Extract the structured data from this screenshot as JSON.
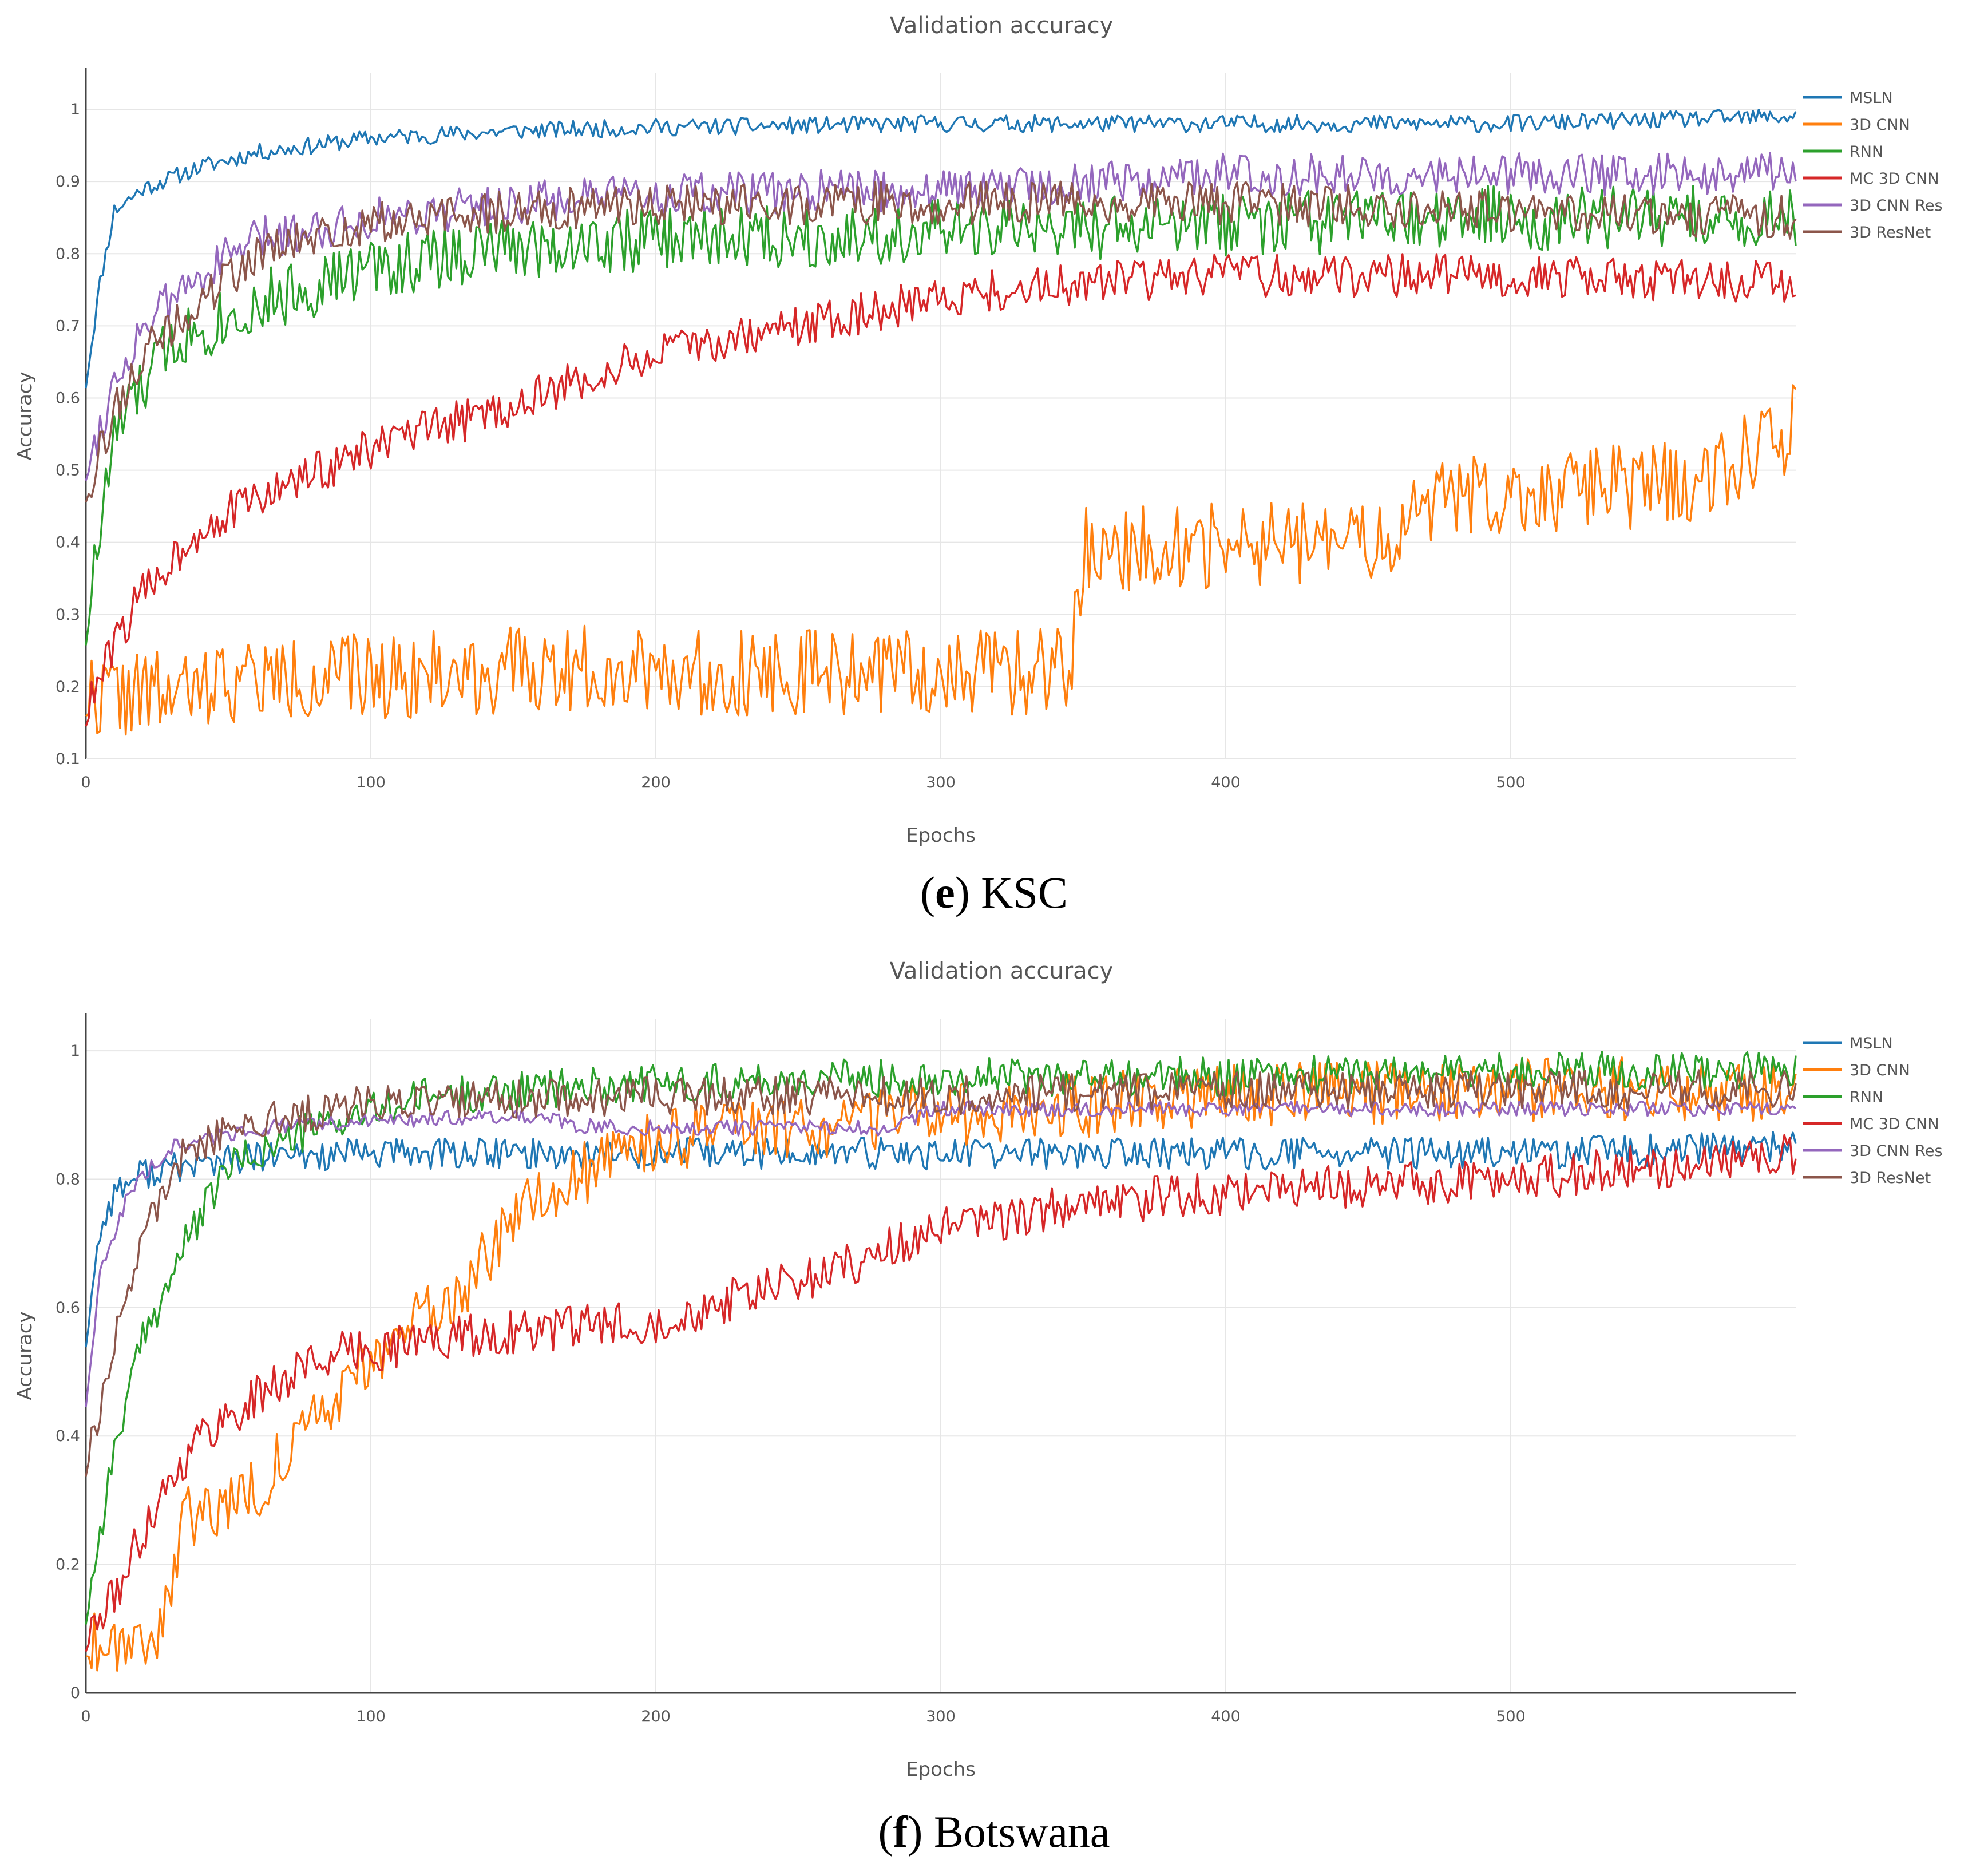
{
  "chart_data": [
    {
      "id": "e",
      "type": "line",
      "title": "Validation accuracy",
      "xlabel": "Epochs",
      "ylabel": "Accuracy",
      "xlim": [
        0,
        600
      ],
      "ylim": [
        0.1,
        1.05
      ],
      "xticks": [
        0,
        100,
        200,
        300,
        400,
        500
      ],
      "yticks": [
        0.1,
        0.2,
        0.3,
        0.4,
        0.5,
        0.6,
        0.7,
        0.8,
        0.9,
        1
      ],
      "legend_position": "right",
      "caption_letter": "e",
      "caption_text": ") KSC",
      "series": [
        {
          "name": "MSLN",
          "color": "#1f77b4",
          "points": [
            [
              0,
              0.62
            ],
            [
              5,
              0.76
            ],
            [
              10,
              0.86
            ],
            [
              20,
              0.89
            ],
            [
              40,
              0.92
            ],
            [
              60,
              0.94
            ],
            [
              80,
              0.95
            ],
            [
              100,
              0.96
            ],
            [
              150,
              0.97
            ],
            [
              200,
              0.975
            ],
            [
              300,
              0.98
            ],
            [
              400,
              0.98
            ],
            [
              500,
              0.98
            ],
            [
              600,
              0.99
            ]
          ],
          "noise": 0.012,
          "seed": 11
        },
        {
          "name": "3D CNN",
          "color": "#ff7f0e",
          "points": [
            [
              0,
              0.19
            ],
            [
              40,
              0.19
            ],
            [
              45,
              0.21
            ],
            [
              70,
              0.21
            ],
            [
              200,
              0.23
            ],
            [
              215,
              0.22
            ],
            [
              345,
              0.22
            ],
            [
              350,
              0.39
            ],
            [
              460,
              0.4
            ],
            [
              470,
              0.46
            ],
            [
              560,
              0.48
            ],
            [
              600,
              0.56
            ]
          ],
          "noise": 0.06,
          "seed": 22
        },
        {
          "name": "RNN",
          "color": "#2ca02c",
          "points": [
            [
              0,
              0.28
            ],
            [
              10,
              0.55
            ],
            [
              30,
              0.68
            ],
            [
              60,
              0.73
            ],
            [
              100,
              0.78
            ],
            [
              150,
              0.81
            ],
            [
              200,
              0.82
            ],
            [
              300,
              0.83
            ],
            [
              400,
              0.84
            ],
            [
              500,
              0.85
            ],
            [
              600,
              0.85
            ]
          ],
          "noise": 0.045,
          "seed": 33
        },
        {
          "name": "MC 3D CNN",
          "color": "#d62728",
          "points": [
            [
              0,
              0.16
            ],
            [
              10,
              0.26
            ],
            [
              20,
              0.33
            ],
            [
              40,
              0.42
            ],
            [
              60,
              0.46
            ],
            [
              100,
              0.53
            ],
            [
              150,
              0.59
            ],
            [
              200,
              0.66
            ],
            [
              250,
              0.7
            ],
            [
              300,
              0.74
            ],
            [
              350,
              0.76
            ],
            [
              400,
              0.77
            ],
            [
              500,
              0.77
            ],
            [
              600,
              0.76
            ]
          ],
          "noise": 0.03,
          "seed": 44
        },
        {
          "name": "3D CNN Res",
          "color": "#9467bd",
          "points": [
            [
              0,
              0.5
            ],
            [
              10,
              0.62
            ],
            [
              20,
              0.7
            ],
            [
              40,
              0.77
            ],
            [
              60,
              0.82
            ],
            [
              100,
              0.85
            ],
            [
              150,
              0.87
            ],
            [
              200,
              0.88
            ],
            [
              300,
              0.89
            ],
            [
              400,
              0.91
            ],
            [
              500,
              0.91
            ],
            [
              600,
              0.91
            ]
          ],
          "noise": 0.03,
          "seed": 55
        },
        {
          "name": "3D ResNet",
          "color": "#8c564b",
          "points": [
            [
              0,
              0.47
            ],
            [
              10,
              0.58
            ],
            [
              20,
              0.66
            ],
            [
              40,
              0.73
            ],
            [
              60,
              0.8
            ],
            [
              100,
              0.84
            ],
            [
              150,
              0.86
            ],
            [
              200,
              0.87
            ],
            [
              300,
              0.87
            ],
            [
              400,
              0.87
            ],
            [
              500,
              0.86
            ],
            [
              600,
              0.85
            ]
          ],
          "noise": 0.03,
          "seed": 66
        }
      ]
    },
    {
      "id": "f",
      "type": "line",
      "title": "Validation accuracy",
      "xlabel": "Epochs",
      "ylabel": "Accuracy",
      "xlim": [
        0,
        600
      ],
      "ylim": [
        0,
        1.05
      ],
      "xticks": [
        0,
        100,
        200,
        300,
        400,
        500
      ],
      "yticks": [
        0,
        0.2,
        0.4,
        0.6,
        0.8,
        1
      ],
      "legend_position": "right",
      "caption_letter": "f",
      "caption_text": ") Botswana",
      "series": [
        {
          "name": "MSLN",
          "color": "#1f77b4",
          "points": [
            [
              0,
              0.55
            ],
            [
              5,
              0.72
            ],
            [
              10,
              0.78
            ],
            [
              20,
              0.81
            ],
            [
              50,
              0.83
            ],
            [
              100,
              0.84
            ],
            [
              200,
              0.84
            ],
            [
              300,
              0.84
            ],
            [
              400,
              0.84
            ],
            [
              500,
              0.84
            ],
            [
              600,
              0.85
            ]
          ],
          "noise": 0.025,
          "seed": 77
        },
        {
          "name": "3D CNN",
          "color": "#ff7f0e",
          "points": [
            [
              0,
              0.08
            ],
            [
              25,
              0.09
            ],
            [
              35,
              0.27
            ],
            [
              60,
              0.32
            ],
            [
              80,
              0.42
            ],
            [
              100,
              0.52
            ],
            [
              130,
              0.62
            ],
            [
              160,
              0.78
            ],
            [
              200,
              0.86
            ],
            [
              250,
              0.88
            ],
            [
              300,
              0.9
            ],
            [
              400,
              0.93
            ],
            [
              500,
              0.94
            ],
            [
              600,
              0.94
            ]
          ],
          "noise": 0.05,
          "seed": 88
        },
        {
          "name": "RNN",
          "color": "#2ca02c",
          "points": [
            [
              0,
              0.12
            ],
            [
              10,
              0.38
            ],
            [
              20,
              0.55
            ],
            [
              35,
              0.7
            ],
            [
              50,
              0.82
            ],
            [
              80,
              0.88
            ],
            [
              120,
              0.93
            ],
            [
              200,
              0.95
            ],
            [
              300,
              0.96
            ],
            [
              400,
              0.96
            ],
            [
              500,
              0.97
            ],
            [
              600,
              0.97
            ]
          ],
          "noise": 0.03,
          "seed": 99
        },
        {
          "name": "MC 3D CNN",
          "color": "#d62728",
          "points": [
            [
              0,
              0.08
            ],
            [
              10,
              0.15
            ],
            [
              25,
              0.3
            ],
            [
              40,
              0.4
            ],
            [
              60,
              0.46
            ],
            [
              80,
              0.52
            ],
            [
              120,
              0.55
            ],
            [
              200,
              0.58
            ],
            [
              250,
              0.64
            ],
            [
              300,
              0.72
            ],
            [
              350,
              0.76
            ],
            [
              400,
              0.78
            ],
            [
              500,
              0.8
            ],
            [
              600,
              0.84
            ]
          ],
          "noise": 0.035,
          "seed": 111
        },
        {
          "name": "3D CNN Res",
          "color": "#9467bd",
          "points": [
            [
              0,
              0.45
            ],
            [
              5,
              0.65
            ],
            [
              15,
              0.78
            ],
            [
              30,
              0.85
            ],
            [
              60,
              0.88
            ],
            [
              100,
              0.89
            ],
            [
              150,
              0.9
            ],
            [
              180,
              0.88
            ],
            [
              280,
              0.88
            ],
            [
              300,
              0.91
            ],
            [
              600,
              0.91
            ]
          ],
          "noise": 0.012,
          "seed": 122
        },
        {
          "name": "3D ResNet",
          "color": "#8c564b",
          "points": [
            [
              0,
              0.35
            ],
            [
              10,
              0.55
            ],
            [
              20,
              0.72
            ],
            [
              35,
              0.85
            ],
            [
              60,
              0.89
            ],
            [
              100,
              0.92
            ],
            [
              200,
              0.93
            ],
            [
              300,
              0.93
            ],
            [
              400,
              0.94
            ],
            [
              500,
              0.94
            ],
            [
              600,
              0.94
            ]
          ],
          "noise": 0.03,
          "seed": 133
        }
      ]
    }
  ]
}
